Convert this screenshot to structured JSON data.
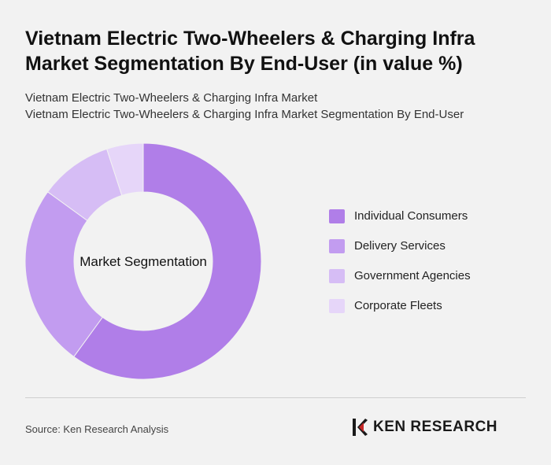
{
  "header": {
    "title_line1": "Vietnam Electric Two-Wheelers & Charging Infra",
    "title_line2": "Market Segmentation By End-User (in value %)",
    "subtitle_line1": "Vietnam Electric Two-Wheelers & Charging Infra Market",
    "subtitle_line2": "Vietnam Electric Two-Wheelers & Charging Infra Market Segmentation By End-User"
  },
  "chart_data": {
    "type": "pie",
    "variant": "donut",
    "center_label": "Market Segmentation",
    "categories": [
      "Individual Consumers",
      "Delivery Services",
      "Government Agencies",
      "Corporate Fleets"
    ],
    "values": [
      60,
      25,
      10,
      5
    ],
    "colors": [
      "#b07ee8",
      "#c29cf0",
      "#d6bdf5",
      "#e6d6f9"
    ],
    "legend_position": "right"
  },
  "footer": {
    "source": "Source: Ken Research Analysis",
    "brand": "KEN RESEARCH"
  }
}
